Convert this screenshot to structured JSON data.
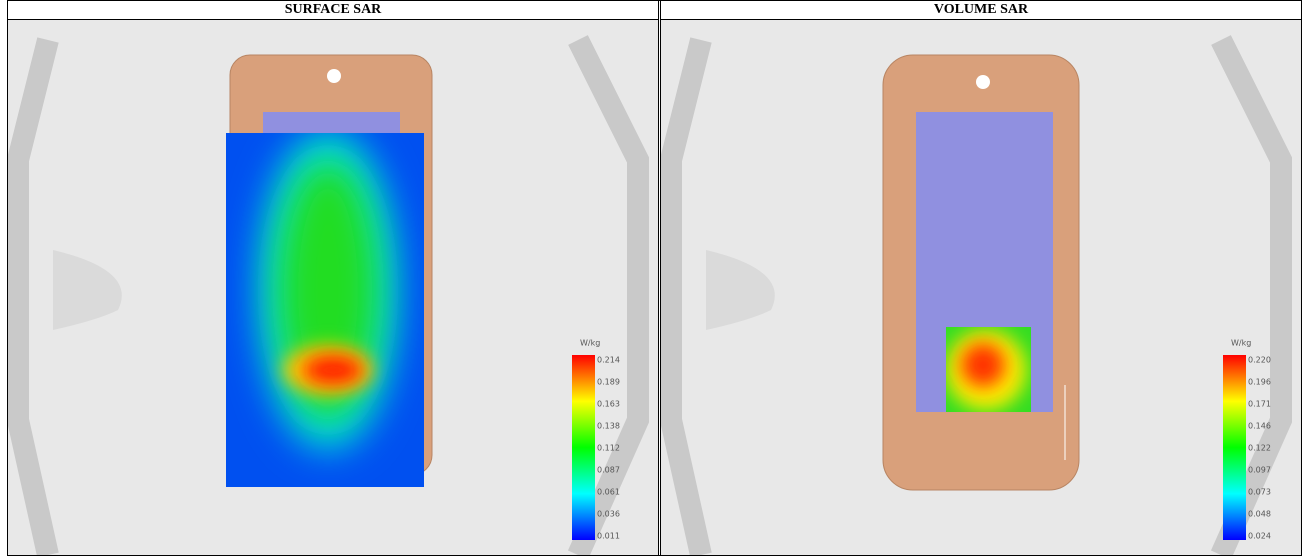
{
  "cells": [
    {
      "title": "SURFACE SAR",
      "legend": {
        "unit": "W/kg",
        "labels": [
          "0.214",
          "0.189",
          "0.163",
          "0.138",
          "0.112",
          "0.087",
          "0.061",
          "0.036",
          "0.011"
        ]
      }
    },
    {
      "title": "VOLUME SAR",
      "legend": {
        "unit": "W/kg",
        "labels": [
          "0.220",
          "0.196",
          "0.171",
          "0.146",
          "0.122",
          "0.097",
          "0.073",
          "0.048",
          "0.024"
        ]
      }
    }
  ]
}
